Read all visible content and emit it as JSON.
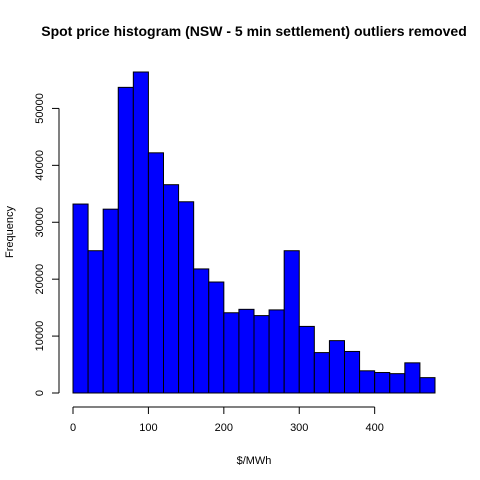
{
  "chart_data": {
    "type": "bar",
    "title": "Spot price histogram (NSW - 5 min settlement) outliers removed",
    "xlabel": "$/MWh",
    "ylabel": "Frequency",
    "bar_color": "#0000ff",
    "edge_color": "#000000",
    "bin_width": 20,
    "bins_start": [
      0,
      20,
      40,
      60,
      80,
      100,
      120,
      140,
      160,
      180,
      200,
      220,
      240,
      260,
      280,
      300,
      320,
      340,
      360,
      380,
      400,
      420,
      440,
      460
    ],
    "values": [
      33200,
      25000,
      32300,
      53700,
      56400,
      42200,
      36600,
      33600,
      21800,
      19500,
      14100,
      14700,
      13600,
      14600,
      25000,
      11700,
      7100,
      9200,
      7300,
      3900,
      3600,
      3400,
      5300,
      2700
    ],
    "xlim": [
      0,
      480
    ],
    "ylim": [
      0,
      56400
    ],
    "x_ticks": [
      0,
      100,
      200,
      300,
      400
    ],
    "y_ticks": [
      0,
      10000,
      20000,
      30000,
      40000,
      50000
    ],
    "grid": false
  }
}
